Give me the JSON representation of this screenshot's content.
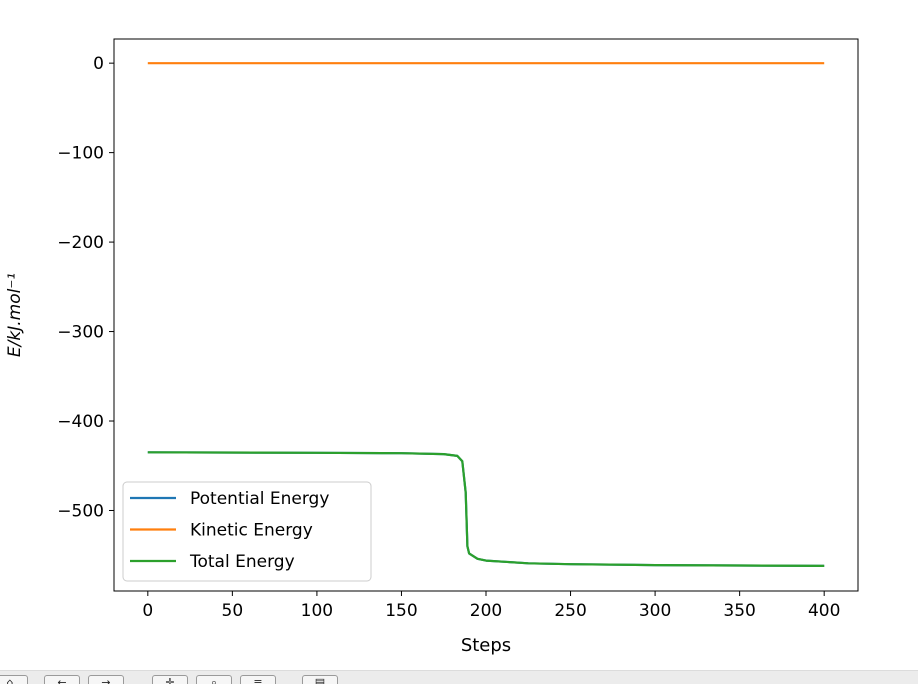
{
  "chart_data": {
    "type": "line",
    "title": "",
    "xlabel": "Steps",
    "ylabel": "E/kJ.mol⁻¹",
    "xlim": [
      -20,
      420
    ],
    "ylim": [
      -590,
      27
    ],
    "x_ticks": [
      "0",
      "50",
      "100",
      "150",
      "200",
      "250",
      "300",
      "350",
      "400"
    ],
    "y_ticks": [
      "0",
      "−100",
      "−200",
      "−300",
      "−400",
      "−500"
    ],
    "legend_position": "lower-left",
    "grid": false,
    "series": [
      {
        "name": "Potential Energy",
        "color": "#1f77b4",
        "x": [
          0,
          100,
          150,
          175,
          183,
          186,
          188,
          189,
          190,
          195,
          200,
          225,
          250,
          300,
          350,
          400
        ],
        "y": [
          -435,
          -435.5,
          -436,
          -437,
          -439,
          -445,
          -480,
          -540,
          -548,
          -554,
          -556,
          -559,
          -560,
          -561,
          -561.5,
          -562
        ]
      },
      {
        "name": "Kinetic Energy",
        "color": "#ff7f0e",
        "x": [
          0,
          100,
          200,
          300,
          400
        ],
        "y": [
          0,
          0,
          0,
          0,
          0
        ]
      },
      {
        "name": "Total Energy",
        "color": "#2ca02c",
        "x": [
          0,
          100,
          150,
          175,
          183,
          186,
          188,
          189,
          190,
          195,
          200,
          225,
          250,
          300,
          350,
          400
        ],
        "y": [
          -435,
          -435.5,
          -436,
          -437,
          -439,
          -445,
          -480,
          -540,
          -548,
          -554,
          -556,
          -559,
          -560,
          -561,
          -561.5,
          -562
        ]
      }
    ]
  },
  "toolbar": {
    "buttons": [
      {
        "icon": "home-icon",
        "glyph": "⌂"
      },
      {
        "icon": "back-icon",
        "glyph": "←"
      },
      {
        "icon": "forward-icon",
        "glyph": "→"
      },
      {
        "icon": "pan-icon",
        "glyph": "✛"
      },
      {
        "icon": "zoom-icon",
        "glyph": "⌕"
      },
      {
        "icon": "subplots-icon",
        "glyph": "≡"
      },
      {
        "icon": "save-icon",
        "glyph": "▤"
      }
    ]
  }
}
